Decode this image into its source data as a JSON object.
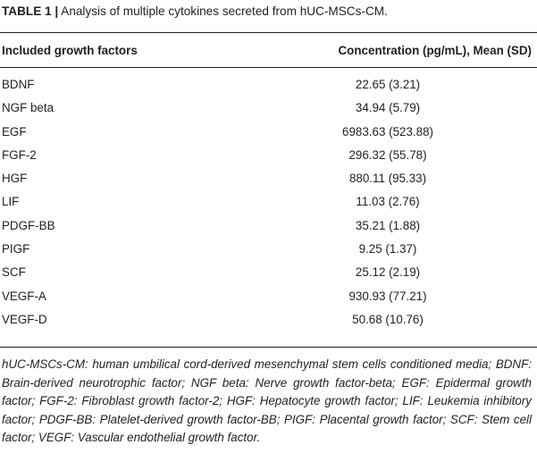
{
  "caption": {
    "label": "TABLE 1 |",
    "text": "Analysis of multiple cytokines secreted from hUC-MSCs-CM."
  },
  "table": {
    "headers": {
      "col1": "Included growth factors",
      "col2": "Concentration (pg/mL), Mean (SD)"
    },
    "rows": [
      {
        "name": "BDNF",
        "value": "22.65 (3.21)"
      },
      {
        "name": "NGF beta",
        "value": "34.94 (5.79)"
      },
      {
        "name": "EGF",
        "value": "6983.63 (523.88)"
      },
      {
        "name": "FGF-2",
        "value": "296.32 (55.78)"
      },
      {
        "name": "HGF",
        "value": "880.11 (95.33)"
      },
      {
        "name": "LIF",
        "value": "11.03 (2.76)"
      },
      {
        "name": "PDGF-BB",
        "value": "35.21 (1.88)"
      },
      {
        "name": "PIGF",
        "value": "9.25 (1.37)"
      },
      {
        "name": "SCF",
        "value": "25.12 (2.19)"
      },
      {
        "name": "VEGF-A",
        "value": "930.93 (77.21)"
      },
      {
        "name": "VEGF-D",
        "value": "50.68 (10.76)"
      }
    ]
  },
  "footnote": "hUC-MSCs-CM: human umbilical cord-derived mesenchymal stem cells conditioned media; BDNF: Brain-derived neurotrophic factor; NGF beta: Nerve growth factor-beta; EGF: Epidermal growth factor; FGF-2: Fibroblast growth factor-2; HGF: Hepatocyte growth factor; LIF: Leukemia inhibitory factor; PDGF-BB: Platelet-derived growth factor-BB; PIGF: Placental growth factor; SCF: Stem cell factor; VEGF: Vascular endothelial growth factor."
}
